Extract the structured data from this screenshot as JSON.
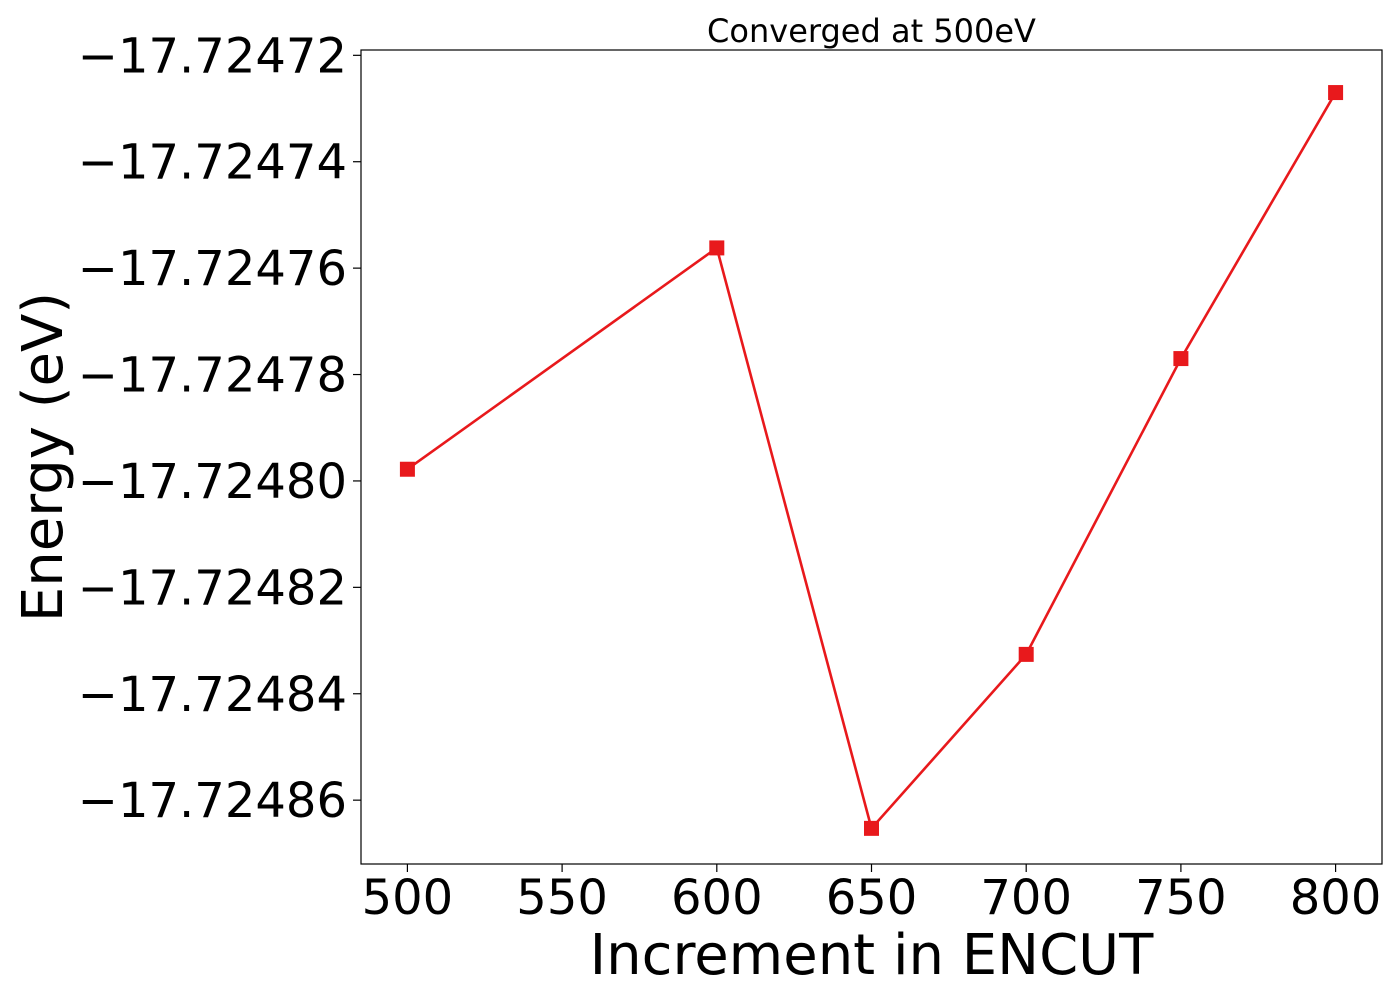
{
  "chart_data": {
    "type": "line",
    "title": "Converged at 500eV",
    "xlabel": "Increment in ENCUT",
    "ylabel": "Energy (eV)",
    "xlim": [
      485,
      815
    ],
    "ylim": [
      -17.724872,
      -17.724719
    ],
    "x_ticks": [
      500,
      550,
      600,
      650,
      700,
      750,
      800
    ],
    "x_tick_labels": [
      "500",
      "550",
      "600",
      "650",
      "700",
      "750",
      "800"
    ],
    "y_ticks": [
      -17.72486,
      -17.72484,
      -17.72482,
      -17.7248,
      -17.72478,
      -17.72476,
      -17.72474,
      -17.72472
    ],
    "y_tick_labels": [
      "−17.72486",
      "−17.72484",
      "−17.72482",
      "−17.72480",
      "−17.72478",
      "−17.72476",
      "−17.72474",
      "−17.72472"
    ],
    "grid": false,
    "series": [
      {
        "color": "#e8191c",
        "marker": "square",
        "x": [
          500,
          600,
          650,
          700,
          750,
          800
        ],
        "y": [
          -17.7247978,
          -17.7247562,
          -17.7248653,
          -17.7248326,
          -17.724777,
          -17.724727
        ]
      }
    ]
  }
}
